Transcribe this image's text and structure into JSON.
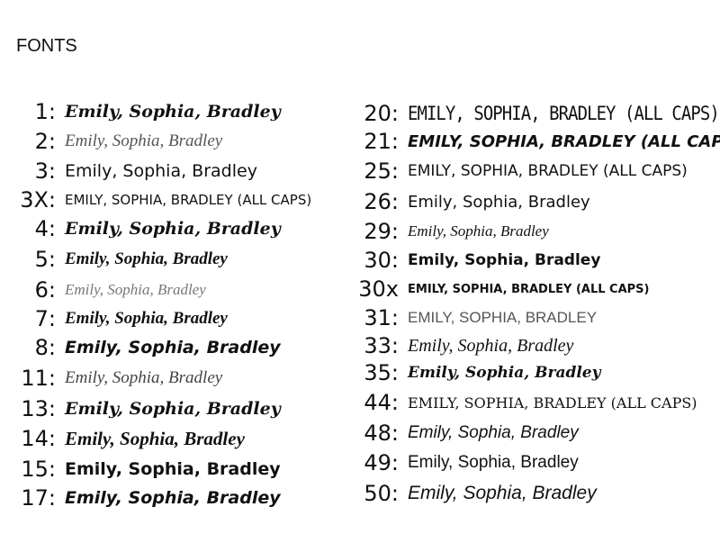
{
  "title": "FONTS",
  "left": [
    {
      "label": "1:",
      "sample": "Emily, Sophia, Bradley",
      "cls": "f1"
    },
    {
      "label": "2:",
      "sample": "Emily, Sophia, Bradley",
      "cls": "f2"
    },
    {
      "label": "3:",
      "sample": "Emily, Sophia, Bradley",
      "cls": "f3"
    },
    {
      "label": "3X:",
      "sample": "EMILY, SOPHIA, BRADLEY (ALL CAPS)",
      "cls": "f3x"
    },
    {
      "label": "4:",
      "sample": "Emily, Sophia, Bradley",
      "cls": "f4"
    },
    {
      "label": "5:",
      "sample": "Emily, Sophia, Bradley",
      "cls": "f5"
    },
    {
      "label": "6:",
      "sample": "Emily, Sophia, Bradley",
      "cls": "f6"
    },
    {
      "label": "7:",
      "sample": "Emily, Sophia, Bradley",
      "cls": "f7"
    },
    {
      "label": "8:",
      "sample": "Emily, Sophia, Bradley",
      "cls": "f8"
    },
    {
      "label": "11:",
      "sample": "Emily, Sophia, Bradley",
      "cls": "f11"
    },
    {
      "label": "13:",
      "sample": "Emily, Sophia, Bradley",
      "cls": "f13"
    },
    {
      "label": "14:",
      "sample": "Emily, Sophia, Bradley",
      "cls": "f14"
    },
    {
      "label": "15:",
      "sample": "Emily, Sophia, Bradley",
      "cls": "f15"
    },
    {
      "label": "17:",
      "sample": "Emily, Sophia, Bradley",
      "cls": "f17"
    }
  ],
  "right": [
    {
      "label": "20:",
      "sample": "EMILY, SOPHIA, BRADLEY (ALL CAPS)",
      "cls": "f20"
    },
    {
      "label": "21:",
      "sample": "EMILY, SOPHIA, BRADLEY (ALL CAPS)",
      "cls": "f21"
    },
    {
      "label": "25:",
      "sample": "EMILY, SOPHIA, BRADLEY (ALL CAPS)",
      "cls": "f25"
    },
    {
      "label": "26:",
      "sample": "Emily, Sophia, Bradley",
      "cls": "f26"
    },
    {
      "label": "29:",
      "sample": "Emily, Sophia, Bradley",
      "cls": "f29"
    },
    {
      "label": "30:",
      "sample": "Emily, Sophia, Bradley",
      "cls": "f30"
    },
    {
      "label": "30x",
      "sample": "EMILY, SOPHIA, BRADLEY (ALL CAPS)",
      "cls": "f30x"
    },
    {
      "label": "31:",
      "sample": "EMILY, SOPHIA, BRADLEY",
      "cls": "f31"
    },
    {
      "label": "33:",
      "sample": "Emily, Sophia, Bradley",
      "cls": "f33"
    },
    {
      "label": "35:",
      "sample": "Emily, Sophia, Bradley",
      "cls": "f35"
    },
    {
      "label": "44:",
      "sample": "EMILY, SOPHIA, BRADLEY (ALL CAPS)",
      "cls": "f44"
    },
    {
      "label": "48:",
      "sample": "Emily, Sophia, Bradley",
      "cls": "f48"
    },
    {
      "label": "49:",
      "sample": "Emily, Sophia, Bradley",
      "cls": "f49"
    },
    {
      "label": "50:",
      "sample": "Emily, Sophia, Bradley",
      "cls": "f50"
    }
  ]
}
